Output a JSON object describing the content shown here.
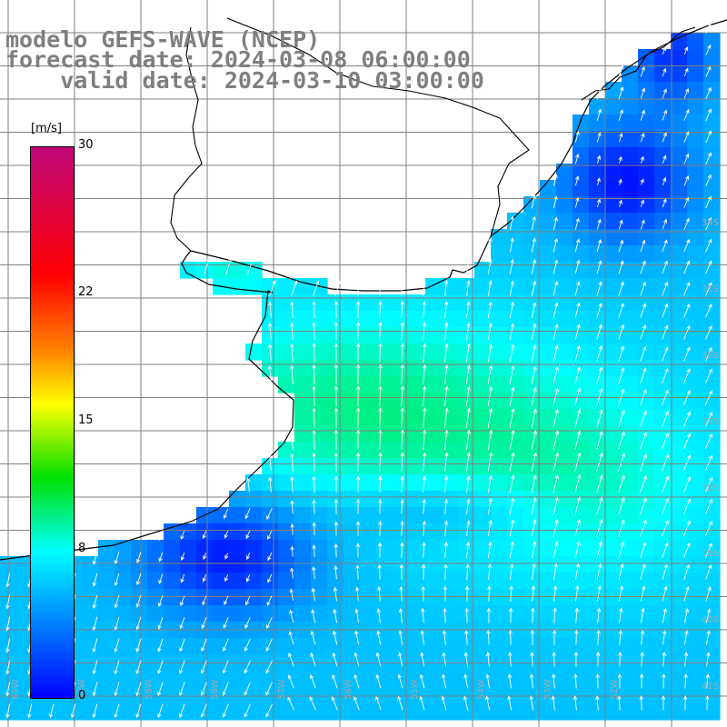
{
  "titles": {
    "line1": "modelo GEFS-WAVE (NCEP)",
    "line2": "forecast date: 2024-03-08 06:00:00",
    "line3": "    valid date: 2024-03-10 03:00:00"
  },
  "colorbar": {
    "unit": "[m/s]",
    "ticks": [
      {
        "value": 30,
        "label": "30"
      },
      {
        "value": 22,
        "label": "22"
      },
      {
        "value": 15,
        "label": "15"
      },
      {
        "value": 8,
        "label": "8"
      },
      {
        "value": 0,
        "label": "0"
      }
    ],
    "min": 0,
    "max": 30,
    "stops": [
      {
        "value": 0,
        "color": "#0000ff"
      },
      {
        "value": 8,
        "color": "#00ffff"
      },
      {
        "value": 12,
        "color": "#00e000"
      },
      {
        "value": 16,
        "color": "#ffff00"
      },
      {
        "value": 19,
        "color": "#ff8000"
      },
      {
        "value": 23,
        "color": "#ff0000"
      },
      {
        "value": 30,
        "color": "#c0087a"
      }
    ]
  },
  "map": {
    "lat_labels": [
      "34S",
      "35S",
      "36S",
      "37S",
      "38S",
      "39S",
      "40S",
      "41S"
    ],
    "lon_labels": [
      "61W",
      "60W",
      "59W",
      "58W",
      "57W",
      "56W",
      "55W",
      "54W",
      "53W",
      "52W"
    ],
    "grid_color": "#808080",
    "label_color": "#a8a8a8"
  }
}
